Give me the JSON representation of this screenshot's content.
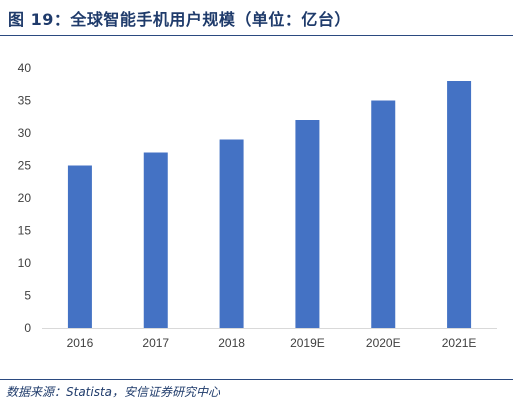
{
  "header": {
    "title": "图 19：全球智能手机用户规模（单位：亿台）"
  },
  "footer": {
    "source": "数据来源：Statista，安信证券研究中心"
  },
  "colors": {
    "bar": "#4472c4",
    "axis_text": "#404040",
    "title": "#1f3b6b"
  },
  "chart_data": {
    "type": "bar",
    "title": "",
    "xlabel": "",
    "ylabel": "",
    "categories": [
      "2016",
      "2017",
      "2018",
      "2019E",
      "2020E",
      "2021E"
    ],
    "values": [
      25,
      27,
      29,
      32,
      35,
      38
    ],
    "ylim": [
      0,
      40
    ],
    "yticks": [
      0,
      5,
      10,
      15,
      20,
      25,
      30,
      35,
      40
    ],
    "grid": false,
    "legend": "none"
  }
}
